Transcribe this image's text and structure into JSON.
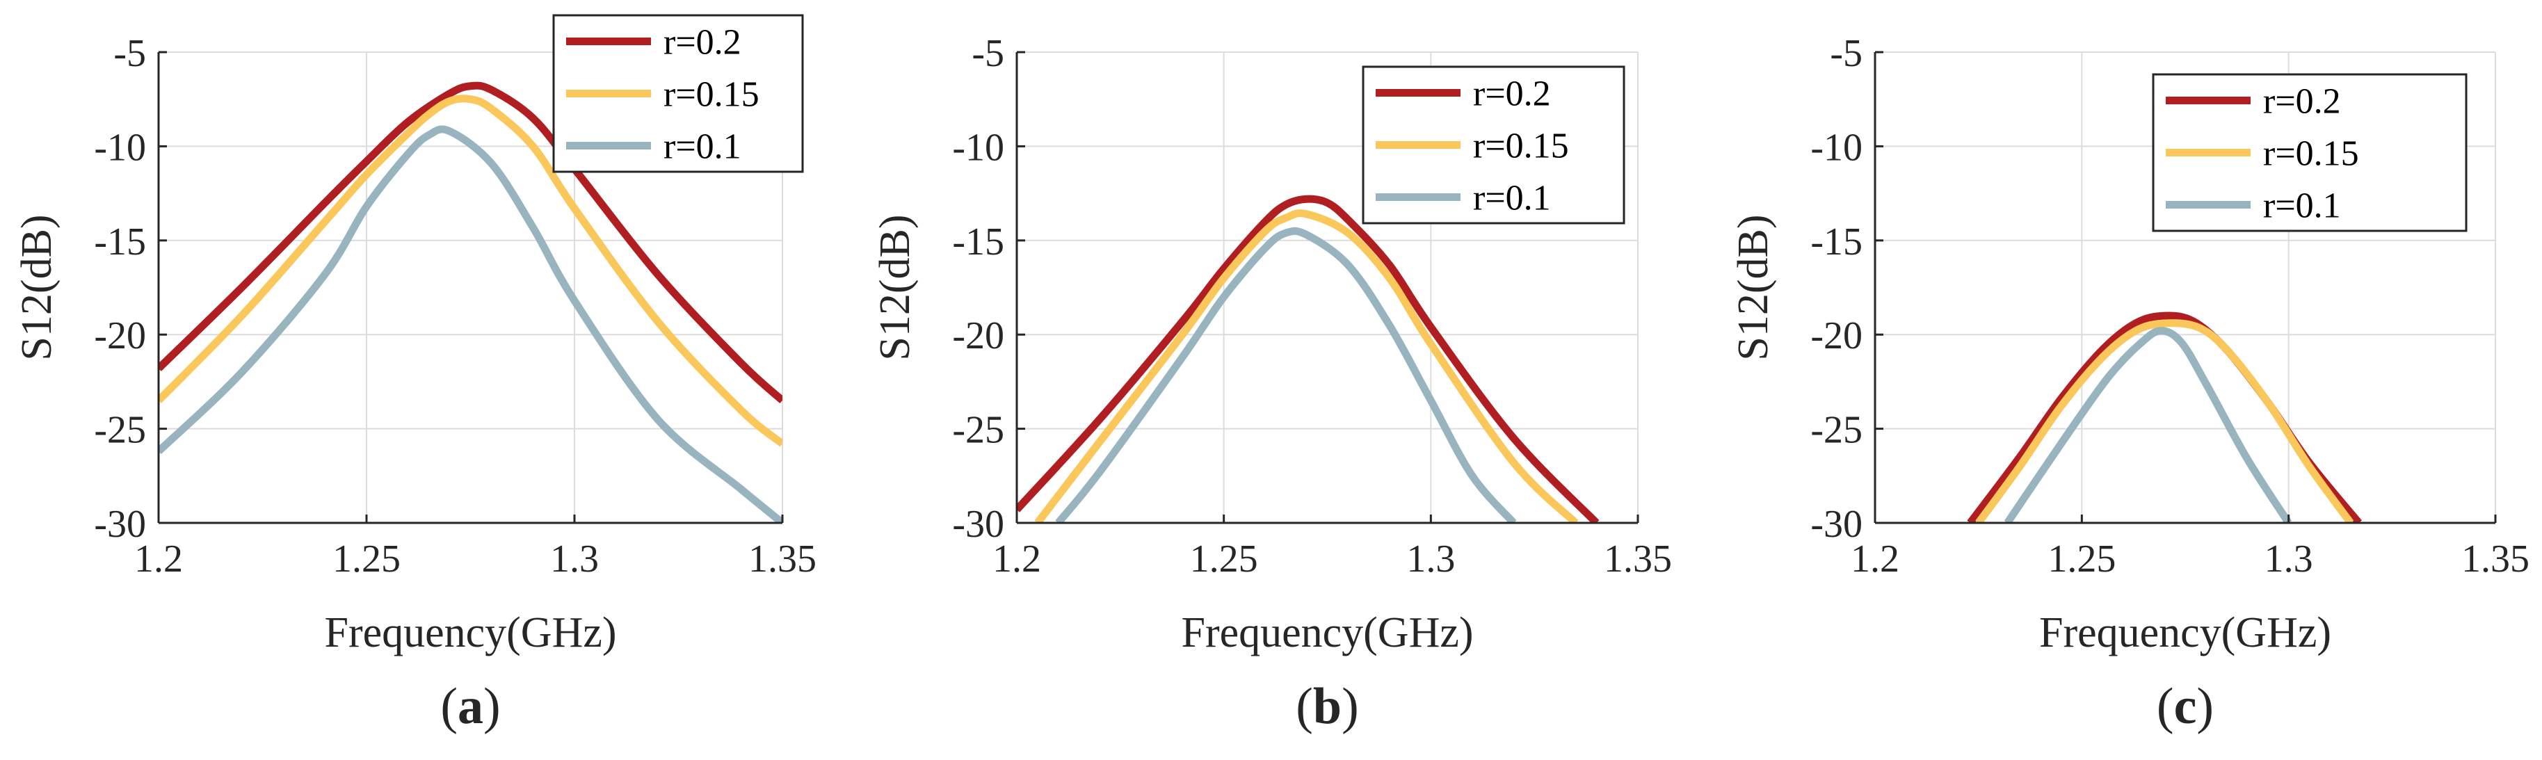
{
  "figure": {
    "colors": {
      "r02": "#B01E22",
      "r015": "#F9C75A",
      "r01": "#98B5BF",
      "grid": "#DCDCDC",
      "axis": "#262626"
    }
  },
  "chart_data": [
    {
      "type": "line",
      "panel_label": {
        "open": "(",
        "letter": "a",
        "close": ")"
      },
      "xlabel": "Frequency(GHz)",
      "ylabel": "S12(dB)",
      "xlim": [
        1.2,
        1.35
      ],
      "ylim": [
        -30,
        -5
      ],
      "xticks": [
        1.2,
        1.25,
        1.3,
        1.35
      ],
      "xtick_labels": [
        "1.2",
        "1.25",
        "1.3",
        "1.35"
      ],
      "yticks": [
        -5,
        -10,
        -15,
        -20,
        -25,
        -30
      ],
      "ytick_labels": [
        "-5",
        "-10",
        "-15",
        "-20",
        "-25",
        "-30"
      ],
      "grid": true,
      "legend_position": "top-right",
      "series": [
        {
          "name": "r=0.2",
          "color_key": "r02",
          "x": [
            1.2,
            1.22,
            1.24,
            1.25,
            1.26,
            1.27,
            1.275,
            1.28,
            1.29,
            1.3,
            1.32,
            1.34,
            1.35
          ],
          "y": [
            -21.8,
            -17.5,
            -13.0,
            -10.8,
            -8.7,
            -7.2,
            -6.8,
            -7.0,
            -8.5,
            -11.2,
            -16.8,
            -21.5,
            -23.5
          ]
        },
        {
          "name": "r=0.15",
          "color_key": "r015",
          "x": [
            1.2,
            1.22,
            1.24,
            1.25,
            1.26,
            1.265,
            1.27,
            1.275,
            1.28,
            1.29,
            1.3,
            1.32,
            1.34,
            1.35
          ],
          "y": [
            -23.5,
            -19.0,
            -14.0,
            -11.5,
            -9.3,
            -8.3,
            -7.6,
            -7.5,
            -8.0,
            -10.0,
            -13.3,
            -19.3,
            -24.0,
            -25.8
          ]
        },
        {
          "name": "r=0.1",
          "color_key": "r01",
          "x": [
            1.2,
            1.22,
            1.24,
            1.25,
            1.26,
            1.265,
            1.27,
            1.28,
            1.29,
            1.3,
            1.32,
            1.34,
            1.35
          ],
          "y": [
            -26.2,
            -22.0,
            -16.8,
            -13.2,
            -10.4,
            -9.4,
            -9.2,
            -10.9,
            -14.3,
            -18.2,
            -24.5,
            -28.2,
            -30.0
          ]
        }
      ]
    },
    {
      "type": "line",
      "panel_label": {
        "open": "(",
        "letter": "b",
        "close": ")"
      },
      "xlabel": "Frequency(GHz)",
      "ylabel": "S12(dB)",
      "xlim": [
        1.2,
        1.35
      ],
      "ylim": [
        -30,
        -5
      ],
      "xticks": [
        1.2,
        1.25,
        1.3,
        1.35
      ],
      "xtick_labels": [
        "1.2",
        "1.25",
        "1.3",
        "1.35"
      ],
      "yticks": [
        -5,
        -10,
        -15,
        -20,
        -25,
        -30
      ],
      "ytick_labels": [
        "-5",
        "-10",
        "-15",
        "-20",
        "-25",
        "-30"
      ],
      "grid": true,
      "legend_position": "top-right",
      "series": [
        {
          "name": "r=0.2",
          "color_key": "r02",
          "x": [
            1.2,
            1.22,
            1.24,
            1.25,
            1.26,
            1.265,
            1.27,
            1.275,
            1.28,
            1.29,
            1.3,
            1.32,
            1.34
          ],
          "y": [
            -29.3,
            -24.5,
            -19.3,
            -16.5,
            -14.0,
            -13.1,
            -12.8,
            -13.0,
            -13.9,
            -16.3,
            -19.6,
            -25.5,
            -30.0
          ]
        },
        {
          "name": "r=0.15",
          "color_key": "r015",
          "x": [
            1.205,
            1.22,
            1.24,
            1.25,
            1.26,
            1.265,
            1.27,
            1.28,
            1.29,
            1.3,
            1.32,
            1.335
          ],
          "y": [
            -30.0,
            -25.7,
            -20.0,
            -17.0,
            -14.5,
            -13.8,
            -13.6,
            -14.6,
            -17.0,
            -20.5,
            -26.8,
            -30.0
          ]
        },
        {
          "name": "r=0.1",
          "color_key": "r01",
          "x": [
            1.21,
            1.22,
            1.24,
            1.25,
            1.26,
            1.265,
            1.27,
            1.28,
            1.29,
            1.3,
            1.31,
            1.32
          ],
          "y": [
            -30.0,
            -27.3,
            -21.2,
            -18.0,
            -15.4,
            -14.6,
            -14.7,
            -16.3,
            -19.5,
            -23.5,
            -27.5,
            -30.0
          ]
        }
      ]
    },
    {
      "type": "line",
      "panel_label": {
        "open": "(",
        "letter": "c",
        "close": ")"
      },
      "xlabel": "Frequency(GHz)",
      "ylabel": "S12(dB)",
      "xlim": [
        1.2,
        1.35
      ],
      "ylim": [
        -30,
        -5
      ],
      "xticks": [
        1.2,
        1.25,
        1.3,
        1.35
      ],
      "xtick_labels": [
        "1.2",
        "1.25",
        "1.3",
        "1.35"
      ],
      "yticks": [
        -5,
        -10,
        -15,
        -20,
        -25,
        -30
      ],
      "ytick_labels": [
        "-5",
        "-10",
        "-15",
        "-20",
        "-25",
        "-30"
      ],
      "grid": true,
      "legend_position": "top-right",
      "series": [
        {
          "name": "r=0.2",
          "color_key": "r02",
          "x": [
            1.223,
            1.235,
            1.245,
            1.255,
            1.263,
            1.27,
            1.277,
            1.285,
            1.295,
            1.305,
            1.317
          ],
          "y": [
            -30.0,
            -26.5,
            -23.4,
            -20.8,
            -19.4,
            -19.0,
            -19.3,
            -20.8,
            -23.6,
            -26.8,
            -30.0
          ]
        },
        {
          "name": "r=0.15",
          "color_key": "r015",
          "x": [
            1.225,
            1.235,
            1.245,
            1.255,
            1.263,
            1.27,
            1.278,
            1.285,
            1.295,
            1.305,
            1.315
          ],
          "y": [
            -30.0,
            -27.0,
            -23.8,
            -21.2,
            -19.8,
            -19.4,
            -19.6,
            -20.8,
            -23.6,
            -27.0,
            -30.0
          ]
        },
        {
          "name": "r=0.1",
          "color_key": "r01",
          "x": [
            1.232,
            1.24,
            1.25,
            1.257,
            1.264,
            1.269,
            1.274,
            1.28,
            1.29,
            1.3
          ],
          "y": [
            -30.0,
            -27.4,
            -24.2,
            -22.1,
            -20.5,
            -19.8,
            -20.4,
            -22.6,
            -26.6,
            -30.0
          ]
        }
      ]
    }
  ]
}
